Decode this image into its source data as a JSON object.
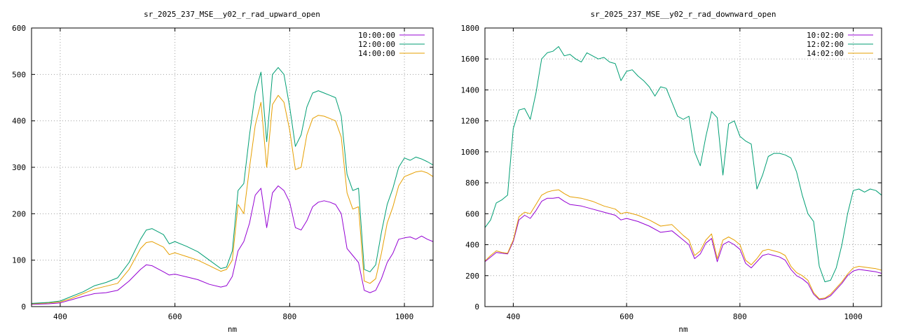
{
  "chart_data": [
    {
      "type": "line",
      "title": "sr_2025_237_MSE__y02_r_rad_upward_open",
      "xlabel": "nm",
      "ylabel": "",
      "xlim": [
        350,
        1050
      ],
      "ylim": [
        0,
        600
      ],
      "xticks": [
        400,
        600,
        800,
        1000
      ],
      "yticks": [
        0,
        100,
        200,
        300,
        400,
        500,
        600
      ],
      "grid": true,
      "legend_position": "top-right",
      "series": [
        {
          "name": "10:00:00",
          "color": "#9400d3",
          "x": [
            350,
            380,
            400,
            420,
            440,
            460,
            480,
            500,
            520,
            540,
            550,
            560,
            580,
            590,
            600,
            620,
            640,
            660,
            680,
            690,
            700,
            710,
            720,
            730,
            740,
            750,
            760,
            770,
            780,
            790,
            800,
            810,
            820,
            830,
            840,
            850,
            860,
            870,
            880,
            890,
            900,
            910,
            920,
            930,
            940,
            950,
            960,
            970,
            980,
            990,
            1000,
            1010,
            1020,
            1030,
            1040,
            1050
          ],
          "y": [
            5,
            6,
            8,
            15,
            22,
            28,
            30,
            35,
            55,
            80,
            90,
            88,
            75,
            68,
            70,
            64,
            58,
            48,
            42,
            45,
            65,
            120,
            140,
            180,
            240,
            255,
            170,
            245,
            260,
            250,
            225,
            170,
            165,
            185,
            215,
            225,
            228,
            225,
            220,
            200,
            125,
            110,
            95,
            35,
            30,
            35,
            60,
            95,
            115,
            145,
            148,
            150,
            145,
            152,
            145,
            140
          ]
        },
        {
          "name": "12:00:00",
          "color": "#009e73",
          "x": [
            350,
            380,
            400,
            420,
            440,
            460,
            480,
            500,
            520,
            540,
            550,
            560,
            580,
            590,
            600,
            620,
            640,
            660,
            680,
            690,
            700,
            710,
            720,
            730,
            740,
            750,
            760,
            770,
            780,
            790,
            800,
            810,
            820,
            830,
            840,
            850,
            860,
            870,
            880,
            890,
            900,
            910,
            920,
            930,
            940,
            950,
            960,
            970,
            980,
            990,
            1000,
            1010,
            1020,
            1030,
            1040,
            1050
          ],
          "y": [
            7,
            9,
            12,
            22,
            32,
            45,
            52,
            62,
            95,
            145,
            165,
            168,
            155,
            135,
            140,
            130,
            118,
            100,
            82,
            85,
            120,
            250,
            265,
            370,
            460,
            505,
            355,
            500,
            515,
            500,
            430,
            345,
            370,
            430,
            460,
            465,
            460,
            455,
            450,
            410,
            285,
            250,
            255,
            80,
            75,
            90,
            160,
            220,
            255,
            300,
            320,
            315,
            322,
            318,
            312,
            305
          ]
        },
        {
          "name": "14:00:00",
          "color": "#e69f00",
          "x": [
            350,
            380,
            400,
            420,
            440,
            460,
            480,
            500,
            520,
            540,
            550,
            560,
            580,
            590,
            600,
            620,
            640,
            660,
            680,
            690,
            700,
            710,
            720,
            730,
            740,
            750,
            760,
            770,
            780,
            790,
            800,
            810,
            820,
            830,
            840,
            850,
            860,
            870,
            880,
            890,
            900,
            910,
            920,
            930,
            940,
            950,
            960,
            970,
            980,
            990,
            1000,
            1010,
            1020,
            1030,
            1040,
            1050
          ],
          "y": [
            6,
            8,
            10,
            18,
            28,
            38,
            44,
            50,
            80,
            125,
            138,
            140,
            128,
            112,
            116,
            108,
            100,
            88,
            76,
            80,
            100,
            220,
            200,
            300,
            390,
            440,
            300,
            435,
            455,
            440,
            380,
            295,
            300,
            370,
            405,
            412,
            410,
            405,
            400,
            365,
            245,
            210,
            215,
            55,
            50,
            60,
            115,
            180,
            215,
            260,
            280,
            285,
            290,
            292,
            288,
            280
          ]
        }
      ],
      "legend": [
        "10:00:00",
        "12:00:00",
        "14:00:00"
      ]
    },
    {
      "type": "line",
      "title": "sr_2025_237_MSE__y02_r_rad_downward_open",
      "xlabel": "nm",
      "ylabel": "",
      "xlim": [
        350,
        1050
      ],
      "ylim": [
        0,
        1800
      ],
      "xticks": [
        400,
        600,
        800,
        1000
      ],
      "yticks": [
        0,
        200,
        400,
        600,
        800,
        1000,
        1200,
        1400,
        1600,
        1800
      ],
      "grid": true,
      "legend_position": "top-right",
      "series": [
        {
          "name": "10:02:00",
          "color": "#9400d3",
          "x": [
            350,
            360,
            370,
            380,
            390,
            400,
            410,
            420,
            430,
            440,
            450,
            460,
            470,
            480,
            490,
            500,
            520,
            540,
            560,
            580,
            590,
            600,
            620,
            640,
            660,
            680,
            700,
            710,
            720,
            730,
            740,
            750,
            760,
            770,
            780,
            790,
            800,
            810,
            820,
            830,
            840,
            850,
            860,
            870,
            880,
            890,
            900,
            910,
            920,
            930,
            940,
            950,
            960,
            970,
            980,
            990,
            1000,
            1010,
            1020,
            1030,
            1040,
            1050
          ],
          "y": [
            290,
            320,
            350,
            345,
            340,
            420,
            560,
            590,
            570,
            620,
            680,
            700,
            700,
            705,
            680,
            660,
            650,
            630,
            610,
            590,
            560,
            570,
            550,
            520,
            480,
            490,
            430,
            400,
            310,
            340,
            410,
            440,
            290,
            400,
            420,
            400,
            370,
            280,
            250,
            290,
            330,
            340,
            330,
            320,
            300,
            240,
            200,
            180,
            150,
            80,
            45,
            50,
            70,
            110,
            150,
            200,
            230,
            240,
            235,
            230,
            225,
            215
          ]
        },
        {
          "name": "12:02:00",
          "color": "#009e73",
          "x": [
            350,
            360,
            370,
            380,
            390,
            400,
            410,
            420,
            430,
            440,
            450,
            460,
            470,
            480,
            490,
            500,
            510,
            520,
            530,
            540,
            550,
            560,
            570,
            580,
            590,
            600,
            610,
            620,
            630,
            640,
            650,
            660,
            670,
            680,
            690,
            700,
            710,
            720,
            730,
            740,
            750,
            760,
            770,
            780,
            790,
            800,
            810,
            820,
            830,
            840,
            850,
            860,
            870,
            880,
            890,
            900,
            910,
            920,
            930,
            940,
            950,
            960,
            970,
            980,
            990,
            1000,
            1010,
            1020,
            1030,
            1040,
            1050
          ],
          "y": [
            510,
            560,
            670,
            690,
            720,
            1150,
            1270,
            1280,
            1210,
            1380,
            1600,
            1640,
            1650,
            1680,
            1620,
            1630,
            1600,
            1580,
            1640,
            1620,
            1600,
            1610,
            1580,
            1570,
            1460,
            1520,
            1530,
            1490,
            1460,
            1420,
            1360,
            1420,
            1410,
            1320,
            1230,
            1210,
            1230,
            1000,
            910,
            1100,
            1260,
            1220,
            850,
            1180,
            1200,
            1100,
            1070,
            1050,
            760,
            850,
            970,
            990,
            990,
            980,
            960,
            870,
            720,
            600,
            550,
            260,
            160,
            170,
            250,
            400,
            600,
            750,
            760,
            740,
            760,
            750,
            720
          ]
        },
        {
          "name": "14:02:00",
          "color": "#e69f00",
          "x": [
            350,
            360,
            370,
            380,
            390,
            400,
            410,
            420,
            430,
            440,
            450,
            460,
            470,
            480,
            490,
            500,
            520,
            540,
            560,
            580,
            590,
            600,
            620,
            640,
            660,
            680,
            700,
            710,
            720,
            730,
            740,
            750,
            760,
            770,
            780,
            790,
            800,
            810,
            820,
            830,
            840,
            850,
            860,
            870,
            880,
            890,
            900,
            910,
            920,
            930,
            940,
            950,
            960,
            970,
            980,
            990,
            1000,
            1010,
            1020,
            1030,
            1040,
            1050
          ],
          "y": [
            295,
            330,
            360,
            350,
            345,
            430,
            580,
            610,
            600,
            660,
            720,
            740,
            750,
            755,
            730,
            710,
            700,
            680,
            650,
            630,
            600,
            610,
            590,
            560,
            520,
            530,
            460,
            430,
            330,
            360,
            430,
            470,
            310,
            430,
            450,
            430,
            400,
            300,
            270,
            310,
            360,
            370,
            360,
            350,
            330,
            260,
            220,
            200,
            170,
            90,
            50,
            55,
            80,
            120,
            160,
            210,
            250,
            260,
            255,
            250,
            245,
            235
          ]
        }
      ],
      "legend": [
        "10:02:00",
        "12:02:00",
        "14:02:00"
      ]
    }
  ]
}
